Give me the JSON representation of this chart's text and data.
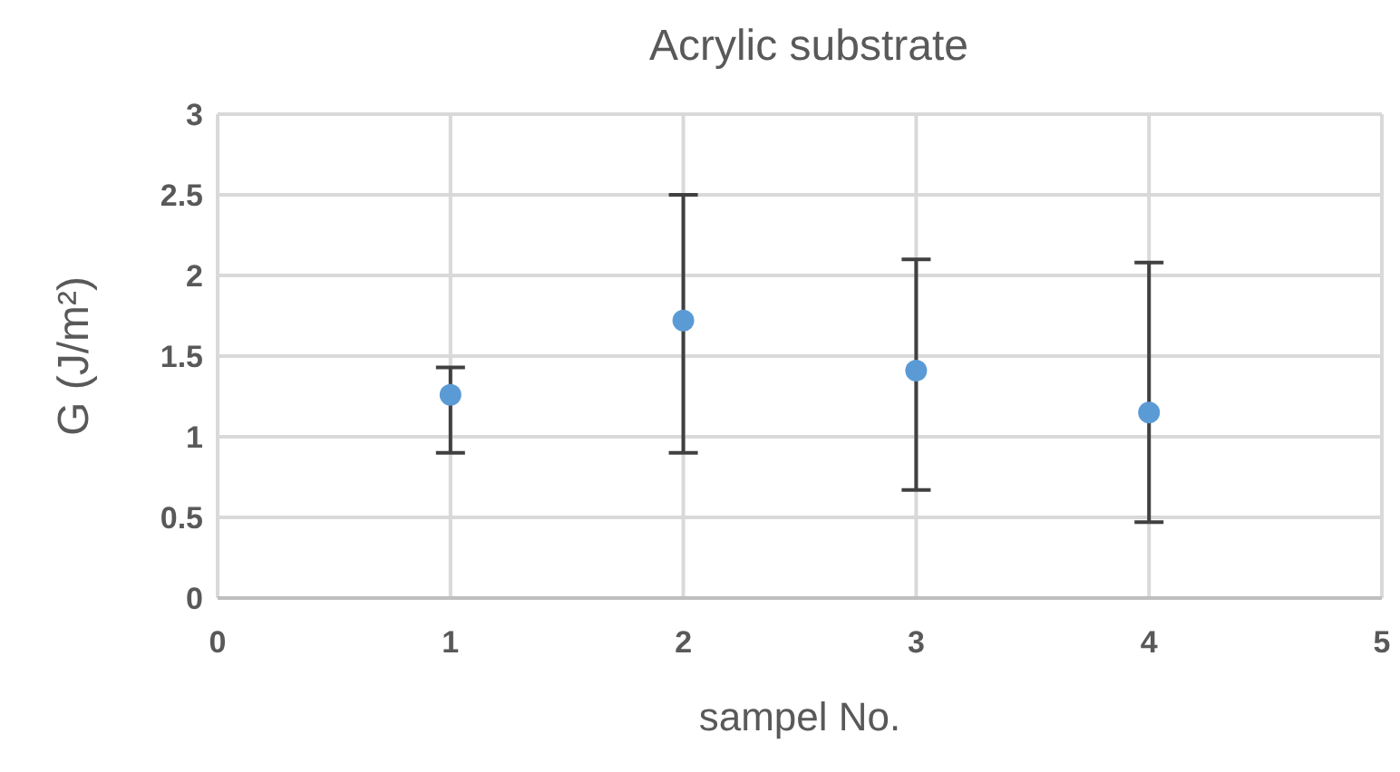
{
  "chart_data": {
    "type": "scatter",
    "title": "Acrylic substrate",
    "xlabel": "sampel No.",
    "ylabel": "G  (J/m²)",
    "x": [
      1,
      2,
      3,
      4
    ],
    "values": [
      1.26,
      1.72,
      1.41,
      1.15
    ],
    "errors": [
      [
        0.9,
        1.43
      ],
      [
        0.9,
        2.5
      ],
      [
        0.67,
        2.1
      ],
      [
        0.47,
        2.08
      ]
    ],
    "color": "#5b9bd5",
    "marker": "circle",
    "xlim": [
      0,
      5
    ],
    "xticks": [
      0,
      1,
      2,
      3,
      4,
      5
    ],
    "ylim": [
      0,
      3
    ],
    "yticks": [
      0,
      0.5,
      1,
      1.5,
      2,
      2.5,
      3
    ],
    "grid": true,
    "legend": false
  }
}
